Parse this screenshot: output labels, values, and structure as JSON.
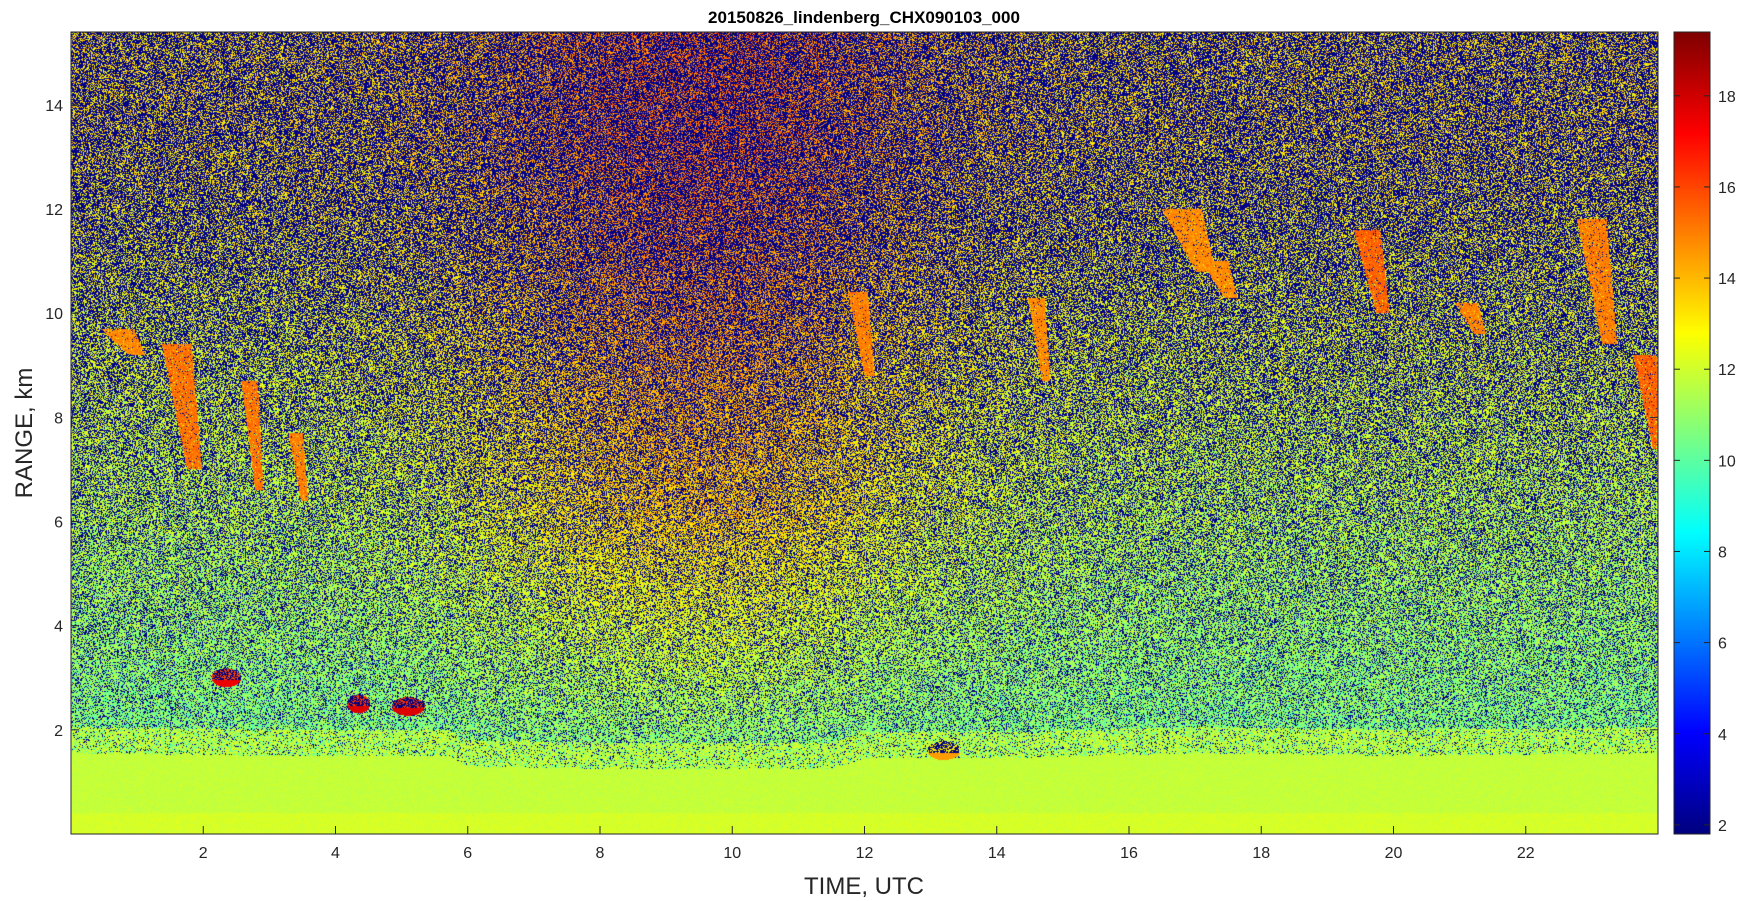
{
  "chart_data": {
    "type": "heatmap",
    "title": "20150826_lindenberg_CHX090103_000",
    "xlabel": "TIME, UTC",
    "ylabel": "RANGE, km",
    "xlim": [
      0,
      24
    ],
    "ylim": [
      0,
      15.4
    ],
    "x_ticks": [
      2,
      4,
      6,
      8,
      10,
      12,
      14,
      16,
      18,
      20,
      22
    ],
    "y_ticks": [
      2,
      4,
      6,
      8,
      10,
      12,
      14
    ],
    "colorbar": {
      "range": [
        1.8,
        19.4
      ],
      "ticks": [
        2,
        4,
        6,
        8,
        10,
        12,
        14,
        16,
        18
      ],
      "colormap": "jet"
    },
    "features": {
      "boundary_layer": {
        "top_km": [
          [
            0,
            1.55
          ],
          [
            3,
            1.5
          ],
          [
            5.7,
            1.5
          ],
          [
            6,
            1.3
          ],
          [
            8,
            1.25
          ],
          [
            11.5,
            1.25
          ],
          [
            12,
            1.45
          ],
          [
            14,
            1.45
          ],
          [
            17,
            1.55
          ],
          [
            20,
            1.5
          ],
          [
            24,
            1.55
          ]
        ],
        "value": 11.8
      },
      "cirrus_streaks": [
        {
          "t": 1.6,
          "top": 9.4,
          "bottom": 7.0,
          "w": 0.45,
          "value": 15.2
        },
        {
          "t": 2.7,
          "top": 8.7,
          "bottom": 6.6,
          "w": 0.25,
          "value": 15.2
        },
        {
          "t": 3.4,
          "top": 7.7,
          "bottom": 6.4,
          "w": 0.22,
          "value": 15.0
        },
        {
          "t": 0.7,
          "top": 9.7,
          "bottom": 9.2,
          "w": 0.5,
          "value": 14.8
        },
        {
          "t": 11.9,
          "top": 10.4,
          "bottom": 8.8,
          "w": 0.3,
          "value": 15.0
        },
        {
          "t": 14.6,
          "top": 10.3,
          "bottom": 8.7,
          "w": 0.25,
          "value": 14.8
        },
        {
          "t": 16.8,
          "top": 12.0,
          "bottom": 10.8,
          "w": 0.6,
          "value": 14.8
        },
        {
          "t": 17.3,
          "top": 11.0,
          "bottom": 10.3,
          "w": 0.4,
          "value": 14.8
        },
        {
          "t": 19.6,
          "top": 11.6,
          "bottom": 10.0,
          "w": 0.4,
          "value": 15.5
        },
        {
          "t": 21.1,
          "top": 10.2,
          "bottom": 9.6,
          "w": 0.35,
          "value": 15.0
        },
        {
          "t": 23.0,
          "top": 11.8,
          "bottom": 9.4,
          "w": 0.45,
          "value": 15.0
        },
        {
          "t": 23.8,
          "top": 9.2,
          "bottom": 7.4,
          "w": 0.35,
          "value": 15.5
        }
      ],
      "low_clouds": [
        {
          "t": 2.35,
          "h": 3.0,
          "w": 0.45,
          "value": 17.5
        },
        {
          "t": 4.35,
          "h": 2.5,
          "w": 0.35,
          "value": 17.8
        },
        {
          "t": 5.1,
          "h": 2.45,
          "w": 0.5,
          "value": 17.8
        },
        {
          "t": 13.2,
          "h": 1.6,
          "w": 0.5,
          "value": 14.5
        }
      ]
    }
  }
}
